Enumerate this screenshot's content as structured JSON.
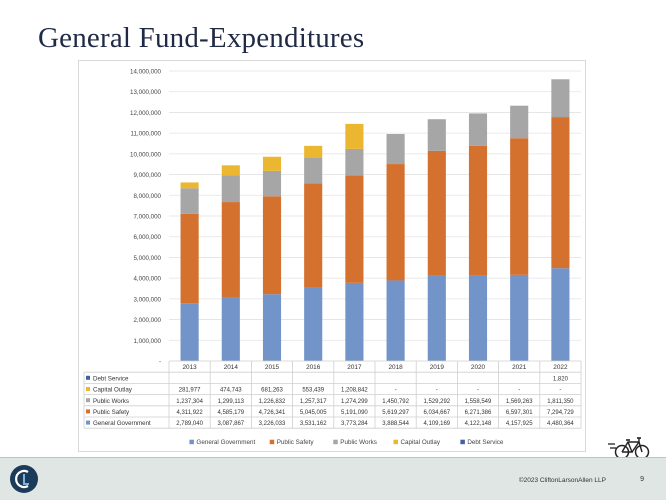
{
  "slide": {
    "title": "General Fund-Expenditures",
    "copyright": "©2023 CliftonLarsonAllen LLP",
    "page_number": "9"
  },
  "icons": {
    "logo": "cla-logo-icon",
    "bike": "bicycle-icon"
  },
  "chart_data": {
    "type": "bar",
    "stacked": true,
    "title": "",
    "xlabel": "",
    "ylabel": "",
    "ylim": [
      0,
      14000000
    ],
    "y_ticks": [
      0,
      1000000,
      2000000,
      3000000,
      4000000,
      5000000,
      6000000,
      7000000,
      8000000,
      9000000,
      10000000,
      11000000,
      12000000,
      13000000,
      14000000
    ],
    "y_tick_labels": [
      "-",
      "1,000,000",
      "2,000,000",
      "3,000,000",
      "4,000,000",
      "5,000,000",
      "6,000,000",
      "7,000,000",
      "8,000,000",
      "9,000,000",
      "10,000,000",
      "11,000,000",
      "12,000,000",
      "13,000,000",
      "14,000,000"
    ],
    "grid": true,
    "legend_position": "bottom",
    "categories": [
      "2013",
      "2014",
      "2015",
      "2016",
      "2017",
      "2018",
      "2019",
      "2020",
      "2021",
      "2022"
    ],
    "series": [
      {
        "name": "General Government",
        "color": "#7394c8",
        "values": [
          2789040,
          3087867,
          3226033,
          3531162,
          3773284,
          3888544,
          4109169,
          4122148,
          4157925,
          4480364
        ],
        "labels": [
          "2,789,040",
          "3,087,867",
          "3,226,033",
          "3,531,162",
          "3,773,284",
          "3,888,544",
          "4,109,169",
          "4,122,148",
          "4,157,925",
          "4,480,364"
        ]
      },
      {
        "name": "Public Safety",
        "color": "#d4712f",
        "values": [
          4311922,
          4585179,
          4726341,
          5045005,
          5191090,
          5619297,
          6034667,
          6271386,
          6597301,
          7294729
        ],
        "labels": [
          "4,311,922",
          "4,585,179",
          "4,726,341",
          "5,045,005",
          "5,191,090",
          "5,619,297",
          "6,034,667",
          "6,271,386",
          "6,597,301",
          "7,294,729"
        ]
      },
      {
        "name": "Public Works",
        "color": "#a6a6a6",
        "values": [
          1237304,
          1299113,
          1226832,
          1257317,
          1274299,
          1450792,
          1529292,
          1558549,
          1569263,
          1811350
        ],
        "labels": [
          "1,237,304",
          "1,299,113",
          "1,226,832",
          "1,257,317",
          "1,274,299",
          "1,450,792",
          "1,529,292",
          "1,558,549",
          "1,569,263",
          "1,811,350"
        ]
      },
      {
        "name": "Capital Outlay",
        "color": "#ebb730",
        "values": [
          281977,
          474743,
          681263,
          553439,
          1208842,
          0,
          0,
          0,
          0,
          0
        ],
        "labels": [
          "281,977",
          "474,743",
          "681,263",
          "553,439",
          "1,208,842",
          "-",
          "-",
          "-",
          "-",
          "-"
        ]
      },
      {
        "name": "Debt Service",
        "color": "#43609f",
        "values": [
          0,
          0,
          0,
          0,
          0,
          0,
          0,
          0,
          0,
          1820
        ],
        "labels": [
          "",
          "",
          "",
          "",
          "",
          "",
          "",
          "",
          "",
          "1,820"
        ]
      }
    ]
  }
}
